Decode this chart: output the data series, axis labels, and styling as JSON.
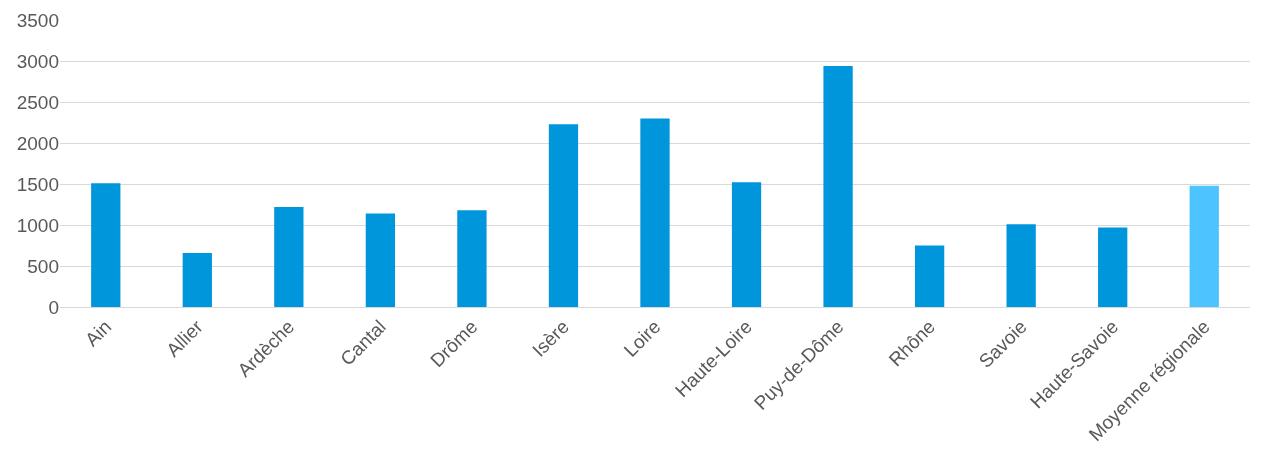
{
  "chart_data": {
    "type": "bar",
    "categories": [
      "Ain",
      "Allier",
      "Ardèche",
      "Cantal",
      "Drôme",
      "Isère",
      "Loire",
      "Haute-Loire",
      "Puy-de-Dôme",
      "Rhône",
      "Savoie",
      "Haute-Savoie",
      "Moyenne régionale"
    ],
    "values": [
      1510,
      660,
      1220,
      1140,
      1180,
      2230,
      2300,
      1520,
      2940,
      750,
      1010,
      970,
      1480
    ],
    "colors": [
      "#0096dc",
      "#0096dc",
      "#0096dc",
      "#0096dc",
      "#0096dc",
      "#0096dc",
      "#0096dc",
      "#0096dc",
      "#0096dc",
      "#0096dc",
      "#0096dc",
      "#0096dc",
      "#4dc3ff"
    ],
    "ylim": [
      0,
      3500
    ],
    "yticks": [
      0,
      500,
      1000,
      1500,
      2000,
      2500,
      3000,
      3500
    ],
    "grid": "y"
  }
}
